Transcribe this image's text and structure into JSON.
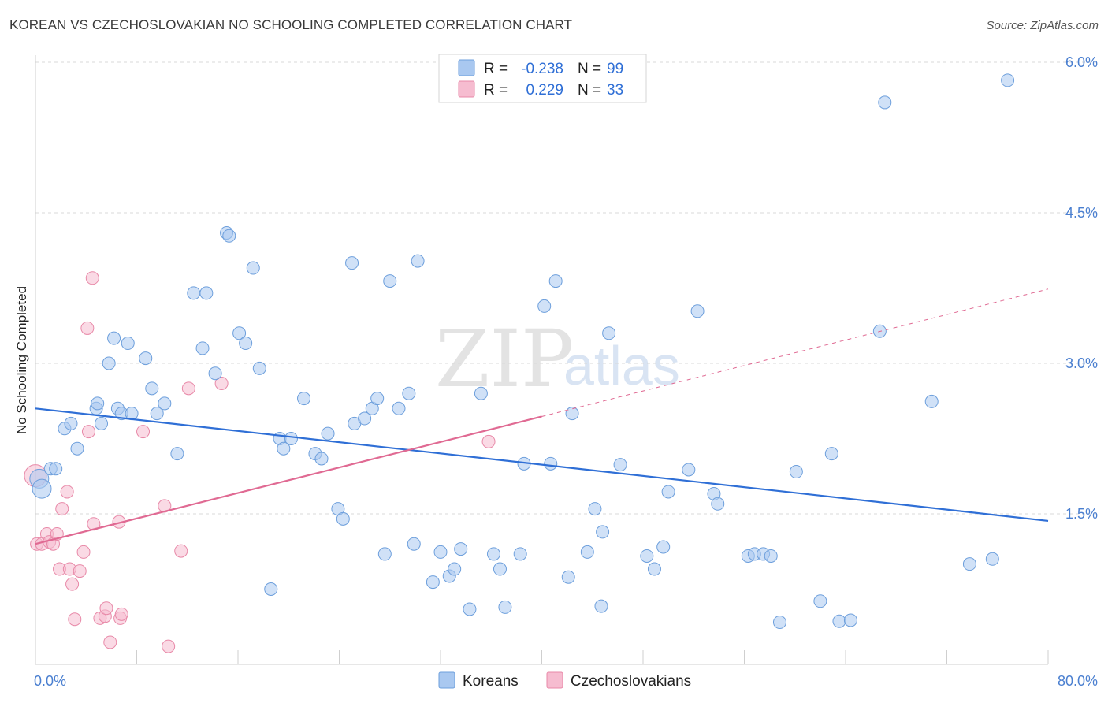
{
  "title": "KOREAN VS CZECHOSLOVAKIAN NO SCHOOLING COMPLETED CORRELATION CHART",
  "source": "Source: ZipAtlas.com",
  "watermark": {
    "zip": "ZIP",
    "atlas": "atlas"
  },
  "colors": {
    "blue_fill": "#a9c8f0",
    "blue_stroke": "#6d9fdc",
    "blue_line": "#2f6fd6",
    "pink_fill": "#f6bcd0",
    "pink_stroke": "#e889a8",
    "pink_line": "#e06a93",
    "grid": "#d8d8d8",
    "axis_text": "#4a7fd0"
  },
  "legend": {
    "rows": [
      {
        "r_label": "R =",
        "r_value": "-0.238",
        "n_label": "N =",
        "n_value": "99"
      },
      {
        "r_label": "R =",
        "r_value": "0.229",
        "n_label": "N =",
        "n_value": "33"
      }
    ]
  },
  "bottom_legend": {
    "koreans": "Koreans",
    "czechoslovakians": "Czechoslovakians"
  },
  "chart_data": {
    "type": "scatter",
    "title": "KOREAN VS CZECHOSLOVAKIAN NO SCHOOLING COMPLETED CORRELATION CHART",
    "xlabel": "",
    "ylabel": "No Schooling Completed",
    "xlim": [
      0,
      80
    ],
    "ylim": [
      0,
      6.2
    ],
    "x_tick_labels": [
      "0.0%",
      "80.0%"
    ],
    "y_ticks": [
      1.5,
      3.0,
      4.5,
      6.0
    ],
    "y_tick_labels": [
      "1.5%",
      "3.0%",
      "4.5%",
      "6.0%"
    ],
    "legend_position": "top-center",
    "series": [
      {
        "name": "Koreans",
        "R": -0.238,
        "N": 99,
        "trend": {
          "x0": 0,
          "y0": 2.55,
          "x1": 80,
          "y1": 1.43
        },
        "points": [
          [
            0.3,
            1.85
          ],
          [
            0.5,
            1.75
          ],
          [
            1.2,
            1.95
          ],
          [
            1.6,
            1.95
          ],
          [
            2.3,
            2.35
          ],
          [
            2.8,
            2.4
          ],
          [
            3.3,
            2.15
          ],
          [
            4.8,
            2.55
          ],
          [
            4.9,
            2.6
          ],
          [
            5.2,
            2.4
          ],
          [
            5.8,
            3.0
          ],
          [
            6.2,
            3.25
          ],
          [
            6.5,
            2.55
          ],
          [
            6.8,
            2.5
          ],
          [
            7.3,
            3.2
          ],
          [
            7.6,
            2.5
          ],
          [
            8.7,
            3.05
          ],
          [
            9.2,
            2.75
          ],
          [
            9.6,
            2.5
          ],
          [
            10.2,
            2.6
          ],
          [
            11.2,
            2.1
          ],
          [
            12.5,
            3.7
          ],
          [
            13.2,
            3.15
          ],
          [
            13.5,
            3.7
          ],
          [
            14.2,
            2.9
          ],
          [
            15.1,
            4.3
          ],
          [
            15.3,
            4.27
          ],
          [
            16.1,
            3.3
          ],
          [
            16.6,
            3.2
          ],
          [
            17.2,
            3.95
          ],
          [
            17.7,
            2.95
          ],
          [
            18.6,
            0.75
          ],
          [
            19.3,
            2.25
          ],
          [
            19.6,
            2.15
          ],
          [
            20.2,
            2.25
          ],
          [
            21.2,
            2.65
          ],
          [
            22.1,
            2.1
          ],
          [
            22.6,
            2.05
          ],
          [
            23.1,
            2.3
          ],
          [
            23.9,
            1.55
          ],
          [
            24.3,
            1.45
          ],
          [
            25.0,
            4.0
          ],
          [
            25.2,
            2.4
          ],
          [
            26.0,
            2.45
          ],
          [
            26.6,
            2.55
          ],
          [
            27.0,
            2.65
          ],
          [
            27.6,
            1.1
          ],
          [
            28.0,
            3.82
          ],
          [
            28.7,
            2.55
          ],
          [
            29.5,
            2.7
          ],
          [
            29.9,
            1.2
          ],
          [
            30.2,
            4.02
          ],
          [
            31.4,
            0.82
          ],
          [
            32.0,
            1.12
          ],
          [
            32.7,
            0.88
          ],
          [
            33.1,
            0.95
          ],
          [
            33.6,
            1.15
          ],
          [
            34.3,
            0.55
          ],
          [
            35.2,
            2.7
          ],
          [
            36.2,
            1.1
          ],
          [
            36.7,
            0.95
          ],
          [
            37.1,
            0.57
          ],
          [
            38.3,
            1.1
          ],
          [
            38.6,
            2.0
          ],
          [
            40.2,
            3.57
          ],
          [
            40.7,
            2.0
          ],
          [
            41.1,
            3.82
          ],
          [
            42.1,
            0.87
          ],
          [
            42.4,
            2.5
          ],
          [
            43.6,
            1.12
          ],
          [
            44.2,
            1.55
          ],
          [
            44.7,
            0.58
          ],
          [
            44.8,
            1.32
          ],
          [
            45.3,
            3.3
          ],
          [
            46.2,
            1.99
          ],
          [
            48.3,
            1.08
          ],
          [
            48.9,
            0.95
          ],
          [
            49.6,
            1.17
          ],
          [
            50.0,
            1.72
          ],
          [
            51.6,
            1.94
          ],
          [
            52.3,
            3.52
          ],
          [
            53.6,
            1.7
          ],
          [
            53.9,
            1.6
          ],
          [
            56.3,
            1.08
          ],
          [
            56.8,
            1.1
          ],
          [
            57.5,
            1.1
          ],
          [
            58.1,
            1.08
          ],
          [
            58.8,
            0.42
          ],
          [
            60.1,
            1.92
          ],
          [
            62.0,
            0.63
          ],
          [
            62.9,
            2.1
          ],
          [
            63.5,
            0.43
          ],
          [
            64.4,
            0.44
          ],
          [
            66.7,
            3.32
          ],
          [
            67.1,
            5.6
          ],
          [
            70.8,
            2.62
          ],
          [
            73.8,
            1.0
          ],
          [
            75.6,
            1.05
          ],
          [
            76.8,
            5.82
          ]
        ]
      },
      {
        "name": "Czechoslovakians",
        "R": 0.229,
        "N": 33,
        "trend": {
          "x0": 0,
          "y0": 1.2,
          "x1": 40,
          "y1": 2.47
        },
        "trend_extension": {
          "x0": 40,
          "y0": 2.47,
          "x1": 80,
          "y1": 3.74
        },
        "points": [
          [
            0.0,
            1.88
          ],
          [
            0.1,
            1.2
          ],
          [
            0.5,
            1.2
          ],
          [
            0.9,
            1.3
          ],
          [
            1.1,
            1.22
          ],
          [
            1.4,
            1.2
          ],
          [
            1.7,
            1.3
          ],
          [
            1.9,
            0.95
          ],
          [
            2.1,
            1.55
          ],
          [
            2.5,
            1.72
          ],
          [
            2.7,
            0.95
          ],
          [
            2.9,
            0.8
          ],
          [
            3.1,
            0.45
          ],
          [
            3.5,
            0.93
          ],
          [
            3.8,
            1.12
          ],
          [
            4.1,
            3.35
          ],
          [
            4.2,
            2.32
          ],
          [
            4.5,
            3.85
          ],
          [
            4.6,
            1.4
          ],
          [
            5.1,
            0.46
          ],
          [
            5.5,
            0.48
          ],
          [
            5.6,
            0.56
          ],
          [
            5.9,
            0.22
          ],
          [
            6.6,
            1.42
          ],
          [
            6.7,
            0.46
          ],
          [
            6.8,
            0.5
          ],
          [
            8.5,
            2.32
          ],
          [
            10.2,
            1.58
          ],
          [
            10.5,
            0.18
          ],
          [
            11.5,
            1.13
          ],
          [
            12.1,
            2.75
          ],
          [
            14.7,
            2.8
          ],
          [
            35.8,
            2.22
          ]
        ]
      }
    ]
  }
}
